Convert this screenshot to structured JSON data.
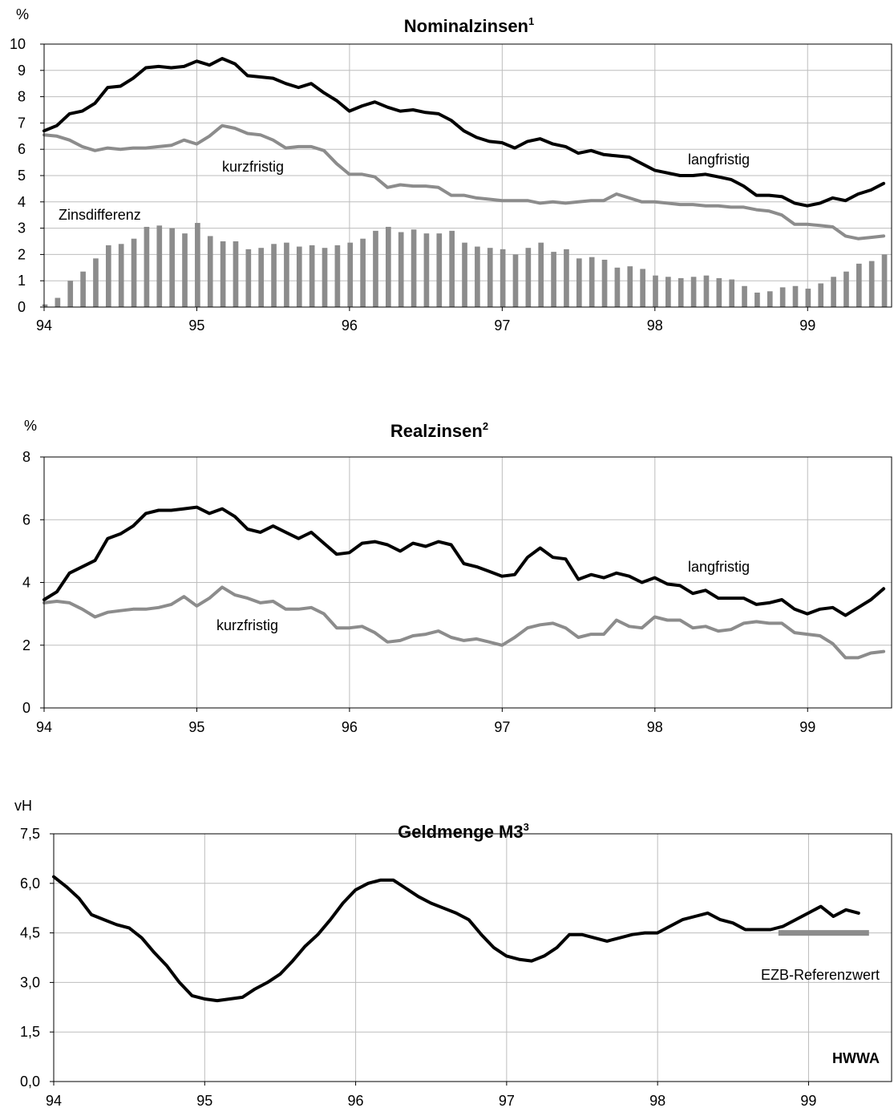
{
  "chart_data": [
    {
      "type": "line",
      "title": "Nominalzinsen",
      "title_sup": "1",
      "unit": "%",
      "ylim": [
        0,
        10
      ],
      "y_ticks": [
        "0",
        "1",
        "2",
        "3",
        "4",
        "5",
        "6",
        "7",
        "8",
        "9",
        "10"
      ],
      "x_ticks": [
        "94",
        "95",
        "96",
        "97",
        "98",
        "99"
      ],
      "x_start": 1994.0,
      "x_end": 1999.55,
      "grid": true,
      "colors": {
        "long": "#000000",
        "short": "#8c8c8c",
        "spread": "#8c8c8c"
      },
      "annotations": {
        "long": "langfristig",
        "short": "kurzfristig",
        "spread": "Zinsdifferenz"
      },
      "series": [
        {
          "key": "long",
          "x_start": 1994.0,
          "step": 0.0833,
          "values": [
            6.7,
            6.9,
            7.35,
            7.45,
            7.75,
            8.35,
            8.4,
            8.7,
            9.1,
            9.15,
            9.1,
            9.15,
            9.35,
            9.2,
            9.45,
            9.25,
            8.8,
            8.75,
            8.7,
            8.5,
            8.35,
            8.5,
            8.15,
            7.85,
            7.45,
            7.65,
            7.8,
            7.6,
            7.45,
            7.5,
            7.4,
            7.35,
            7.1,
            6.7,
            6.45,
            6.3,
            6.25,
            6.05,
            6.3,
            6.4,
            6.2,
            6.1,
            5.85,
            5.95,
            5.8,
            5.75,
            5.7,
            5.45,
            5.2,
            5.1,
            5.0,
            5.0,
            5.05,
            4.95,
            4.85,
            4.6,
            4.25,
            4.25,
            4.2,
            3.95,
            3.85,
            3.95,
            4.15,
            4.05,
            4.3,
            4.45,
            4.7
          ]
        },
        {
          "key": "short",
          "x_start": 1994.0,
          "step": 0.0833,
          "values": [
            6.55,
            6.5,
            6.35,
            6.1,
            5.95,
            6.05,
            6.0,
            6.05,
            6.05,
            6.1,
            6.15,
            6.35,
            6.2,
            6.5,
            6.9,
            6.8,
            6.6,
            6.55,
            6.35,
            6.05,
            6.1,
            6.1,
            5.95,
            5.45,
            5.05,
            5.05,
            4.95,
            4.55,
            4.65,
            4.6,
            4.6,
            4.55,
            4.25,
            4.25,
            4.15,
            4.1,
            4.05,
            4.05,
            4.05,
            3.95,
            4.0,
            3.95,
            4.0,
            4.05,
            4.05,
            4.3,
            4.15,
            4.0,
            4.0,
            3.95,
            3.9,
            3.9,
            3.85,
            3.85,
            3.8,
            3.8,
            3.7,
            3.65,
            3.5,
            3.15,
            3.15,
            3.1,
            3.05,
            2.7,
            2.6,
            2.65,
            2.7
          ]
        }
      ],
      "bars": {
        "key": "spread",
        "x_start": 1994.0,
        "step": 0.0833,
        "values": [
          0.1,
          0.35,
          1.0,
          1.35,
          1.85,
          2.35,
          2.4,
          2.6,
          3.05,
          3.1,
          3.0,
          2.8,
          3.2,
          2.7,
          2.5,
          2.5,
          2.2,
          2.25,
          2.4,
          2.45,
          2.3,
          2.35,
          2.25,
          2.35,
          2.45,
          2.6,
          2.9,
          3.05,
          2.85,
          2.95,
          2.8,
          2.8,
          2.9,
          2.45,
          2.3,
          2.25,
          2.2,
          2.0,
          2.25,
          2.45,
          2.1,
          2.2,
          1.85,
          1.9,
          1.8,
          1.5,
          1.55,
          1.45,
          1.2,
          1.15,
          1.1,
          1.15,
          1.2,
          1.1,
          1.05,
          0.8,
          0.55,
          0.6,
          0.75,
          0.8,
          0.7,
          0.9,
          1.15,
          1.35,
          1.65,
          1.75,
          2.0
        ]
      }
    },
    {
      "type": "line",
      "title": "Realzinsen",
      "title_sup": "2",
      "unit": "%",
      "ylim": [
        0,
        8
      ],
      "y_ticks": [
        "0",
        "2",
        "4",
        "6",
        "8"
      ],
      "x_ticks": [
        "94",
        "95",
        "96",
        "97",
        "98",
        "99"
      ],
      "x_start": 1994.0,
      "x_end": 1999.55,
      "grid": true,
      "colors": {
        "long": "#000000",
        "short": "#8c8c8c"
      },
      "annotations": {
        "long": "langfristig",
        "short": "kurzfristig"
      },
      "series": [
        {
          "key": "long",
          "x_start": 1994.0,
          "step": 0.0833,
          "values": [
            3.45,
            3.7,
            4.3,
            4.5,
            4.7,
            5.4,
            5.55,
            5.8,
            6.2,
            6.3,
            6.3,
            6.35,
            6.4,
            6.2,
            6.35,
            6.1,
            5.7,
            5.6,
            5.8,
            5.6,
            5.4,
            5.6,
            5.25,
            4.9,
            4.95,
            5.25,
            5.3,
            5.2,
            5.0,
            5.25,
            5.15,
            5.3,
            5.2,
            4.6,
            4.5,
            4.35,
            4.2,
            4.25,
            4.8,
            5.1,
            4.8,
            4.75,
            4.1,
            4.25,
            4.15,
            4.3,
            4.2,
            4.0,
            4.15,
            3.95,
            3.9,
            3.65,
            3.75,
            3.5,
            3.5,
            3.5,
            3.3,
            3.35,
            3.45,
            3.15,
            3.0,
            3.15,
            3.2,
            2.95,
            3.2,
            3.45,
            3.8
          ]
        },
        {
          "key": "short",
          "x_start": 1994.0,
          "step": 0.0833,
          "values": [
            3.35,
            3.4,
            3.35,
            3.15,
            2.9,
            3.05,
            3.1,
            3.15,
            3.15,
            3.2,
            3.3,
            3.55,
            3.25,
            3.5,
            3.85,
            3.6,
            3.5,
            3.35,
            3.4,
            3.15,
            3.15,
            3.2,
            3.0,
            2.55,
            2.55,
            2.6,
            2.4,
            2.1,
            2.15,
            2.3,
            2.35,
            2.45,
            2.25,
            2.15,
            2.2,
            2.1,
            2.0,
            2.25,
            2.55,
            2.65,
            2.7,
            2.55,
            2.25,
            2.35,
            2.35,
            2.8,
            2.6,
            2.55,
            2.9,
            2.8,
            2.8,
            2.55,
            2.6,
            2.45,
            2.5,
            2.7,
            2.75,
            2.7,
            2.7,
            2.4,
            2.35,
            2.3,
            2.05,
            1.6,
            1.6,
            1.75,
            1.8
          ]
        }
      ]
    },
    {
      "type": "line",
      "title": "Geldmenge M3",
      "title_sup": "3",
      "unit": "vH",
      "ylim": [
        0,
        7.5
      ],
      "y_ticks": [
        "0,0",
        "1,5",
        "3,0",
        "4,5",
        "6,0",
        "7,5"
      ],
      "x_ticks": [
        "94",
        "95",
        "96",
        "97",
        "98",
        "99"
      ],
      "x_start": 1994.0,
      "x_end": 1999.55,
      "grid": true,
      "colors": {
        "m3": "#000000",
        "ref": "#8c8c8c"
      },
      "annotations": {
        "ref": "EZB-Referenzwert",
        "source": "HWWA"
      },
      "series": [
        {
          "key": "m3",
          "x_start": 1994.0,
          "step": 0.0833,
          "values": [
            6.2,
            5.9,
            5.55,
            5.05,
            4.9,
            4.75,
            4.65,
            4.35,
            3.9,
            3.5,
            3.0,
            2.6,
            2.5,
            2.45,
            2.5,
            2.55,
            2.8,
            3.0,
            3.25,
            3.65,
            4.1,
            4.45,
            4.9,
            5.4,
            5.8,
            6.0,
            6.1,
            6.1,
            5.85,
            5.6,
            5.4,
            5.25,
            5.1,
            4.9,
            4.45,
            4.05,
            3.8,
            3.7,
            3.65,
            3.8,
            4.05,
            4.45,
            4.45,
            4.35,
            4.25,
            4.35,
            4.45,
            4.5,
            4.5,
            4.7,
            4.9,
            5.0,
            5.1,
            4.9,
            4.8,
            4.6,
            4.6,
            4.6,
            4.7,
            4.9,
            5.1,
            5.3,
            5.0,
            5.2,
            5.1
          ]
        },
        {
          "key": "ref",
          "x": [
            1998.8,
            1999.4
          ],
          "values": [
            4.5,
            4.5
          ]
        }
      ]
    }
  ]
}
